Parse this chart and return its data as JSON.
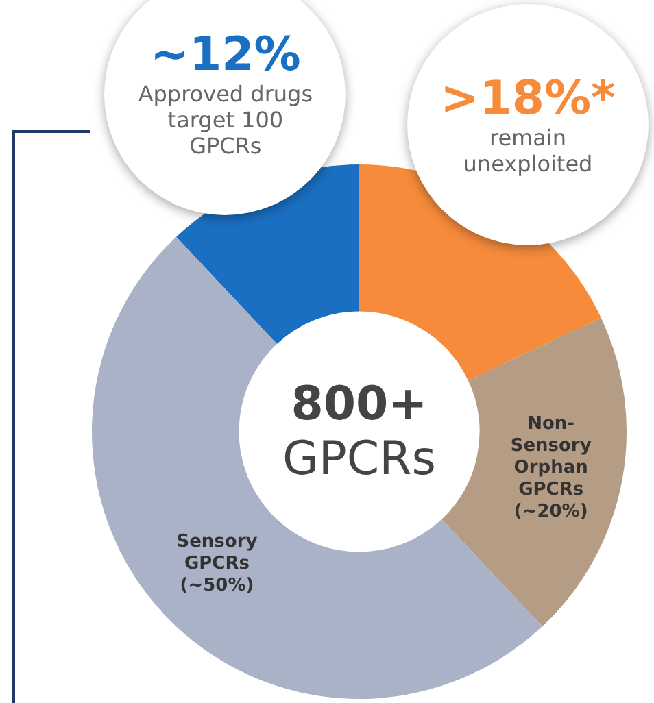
{
  "chart_data": {
    "type": "donut",
    "title": "800+ GPCRs",
    "categories": [
      "Approved drugs target 100 GPCRs",
      "remain unexploited",
      "Non-Sensory Orphan GPCRs",
      "Sensory GPCRs"
    ],
    "values": [
      12,
      18,
      20,
      50
    ],
    "value_labels": [
      "~12%",
      ">18%*",
      "(~20%)",
      "(~50%)"
    ],
    "colors": [
      "#1b6fc2",
      "#f58b3b",
      "#b49c85",
      "#aab2c7"
    ],
    "legend": false
  }
}
